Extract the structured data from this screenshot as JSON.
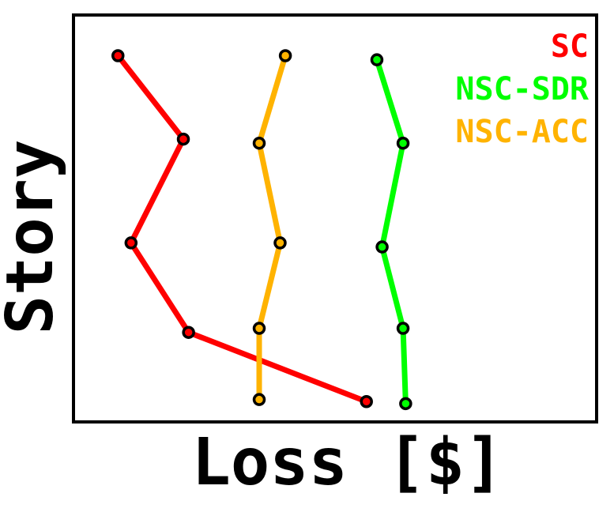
{
  "chart_data": {
    "type": "line",
    "xlabel": "Loss [$]",
    "ylabel": "Story",
    "xlim": [
      0,
      100
    ],
    "ylim": [
      0,
      100
    ],
    "grid": false,
    "legend_placement": "top-right",
    "series": [
      {
        "name": "SC",
        "color": "#ff0000",
        "points": [
          [
            8.5,
            90.0
          ],
          [
            21.0,
            69.5
          ],
          [
            11.0,
            44.0
          ],
          [
            22.0,
            22.0
          ],
          [
            56.0,
            5.0
          ]
        ]
      },
      {
        "name": "NSC-SDR",
        "color": "#00ff00",
        "points": [
          [
            58.0,
            89.0
          ],
          [
            63.0,
            68.5
          ],
          [
            59.0,
            43.0
          ],
          [
            63.0,
            23.0
          ],
          [
            63.5,
            4.5
          ]
        ]
      },
      {
        "name": "NSC-ACC",
        "color": "#ffb300",
        "points": [
          [
            40.5,
            90.0
          ],
          [
            35.5,
            68.5
          ],
          [
            39.5,
            44.0
          ],
          [
            35.5,
            23.0
          ],
          [
            35.5,
            5.5
          ]
        ]
      }
    ]
  }
}
